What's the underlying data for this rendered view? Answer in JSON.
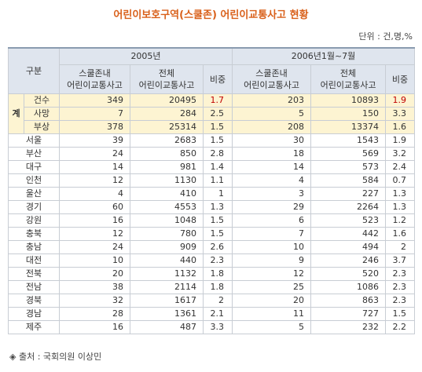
{
  "title": "어린이보호구역(스쿨존) 어린이교통사고 현황",
  "unit": "단위 : 건,명,%",
  "header": {
    "group": "구분",
    "years": [
      "2005년",
      "2006년1월~7월"
    ],
    "columns": [
      "스쿨존내\n어린이교통사고",
      "전체\n어린이교통사고",
      "비중",
      "스쿨존내\n어린이교통사고",
      "전체\n어린이교통사고",
      "비중"
    ]
  },
  "total": {
    "label": "계",
    "rows": [
      {
        "label": "건수",
        "values": [
          349,
          20495,
          1.7,
          203,
          10893,
          1.9
        ]
      },
      {
        "label": "사망",
        "values": [
          7,
          284,
          2.5,
          5,
          150,
          3.3
        ]
      },
      {
        "label": "부상",
        "values": [
          378,
          25314,
          1.5,
          208,
          13374,
          1.6
        ]
      }
    ]
  },
  "rows": [
    {
      "label": "서울",
      "values": [
        39,
        2683,
        1.5,
        30,
        1543,
        1.9
      ]
    },
    {
      "label": "부산",
      "values": [
        24,
        850,
        2.8,
        18,
        569,
        3.2
      ]
    },
    {
      "label": "대구",
      "values": [
        14,
        981,
        1.4,
        14,
        573,
        2.4
      ]
    },
    {
      "label": "인천",
      "values": [
        12,
        1130,
        1.1,
        4,
        584,
        0.7
      ]
    },
    {
      "label": "울산",
      "values": [
        4,
        410,
        1,
        3,
        227,
        1.3
      ]
    },
    {
      "label": "경기",
      "values": [
        60,
        4553,
        1.3,
        29,
        2264,
        1.3
      ]
    },
    {
      "label": "강원",
      "values": [
        16,
        1048,
        1.5,
        6,
        523,
        1.2
      ]
    },
    {
      "label": "충북",
      "values": [
        12,
        780,
        1.5,
        7,
        442,
        1.6
      ]
    },
    {
      "label": "충남",
      "values": [
        24,
        909,
        2.6,
        10,
        494,
        2
      ]
    },
    {
      "label": "대전",
      "values": [
        10,
        440,
        2.3,
        9,
        246,
        3.7
      ]
    },
    {
      "label": "전북",
      "values": [
        20,
        1132,
        1.8,
        12,
        520,
        2.3
      ]
    },
    {
      "label": "전남",
      "values": [
        38,
        2114,
        1.8,
        25,
        1086,
        2.3
      ]
    },
    {
      "label": "경북",
      "values": [
        32,
        1617,
        2,
        20,
        863,
        2.3
      ]
    },
    {
      "label": "경남",
      "values": [
        28,
        1361,
        2.1,
        11,
        727,
        1.5
      ]
    },
    {
      "label": "제주",
      "values": [
        16,
        487,
        3.3,
        5,
        232,
        2.2
      ]
    }
  ],
  "source": "◈ 출처 : 국회의원 이상민"
}
